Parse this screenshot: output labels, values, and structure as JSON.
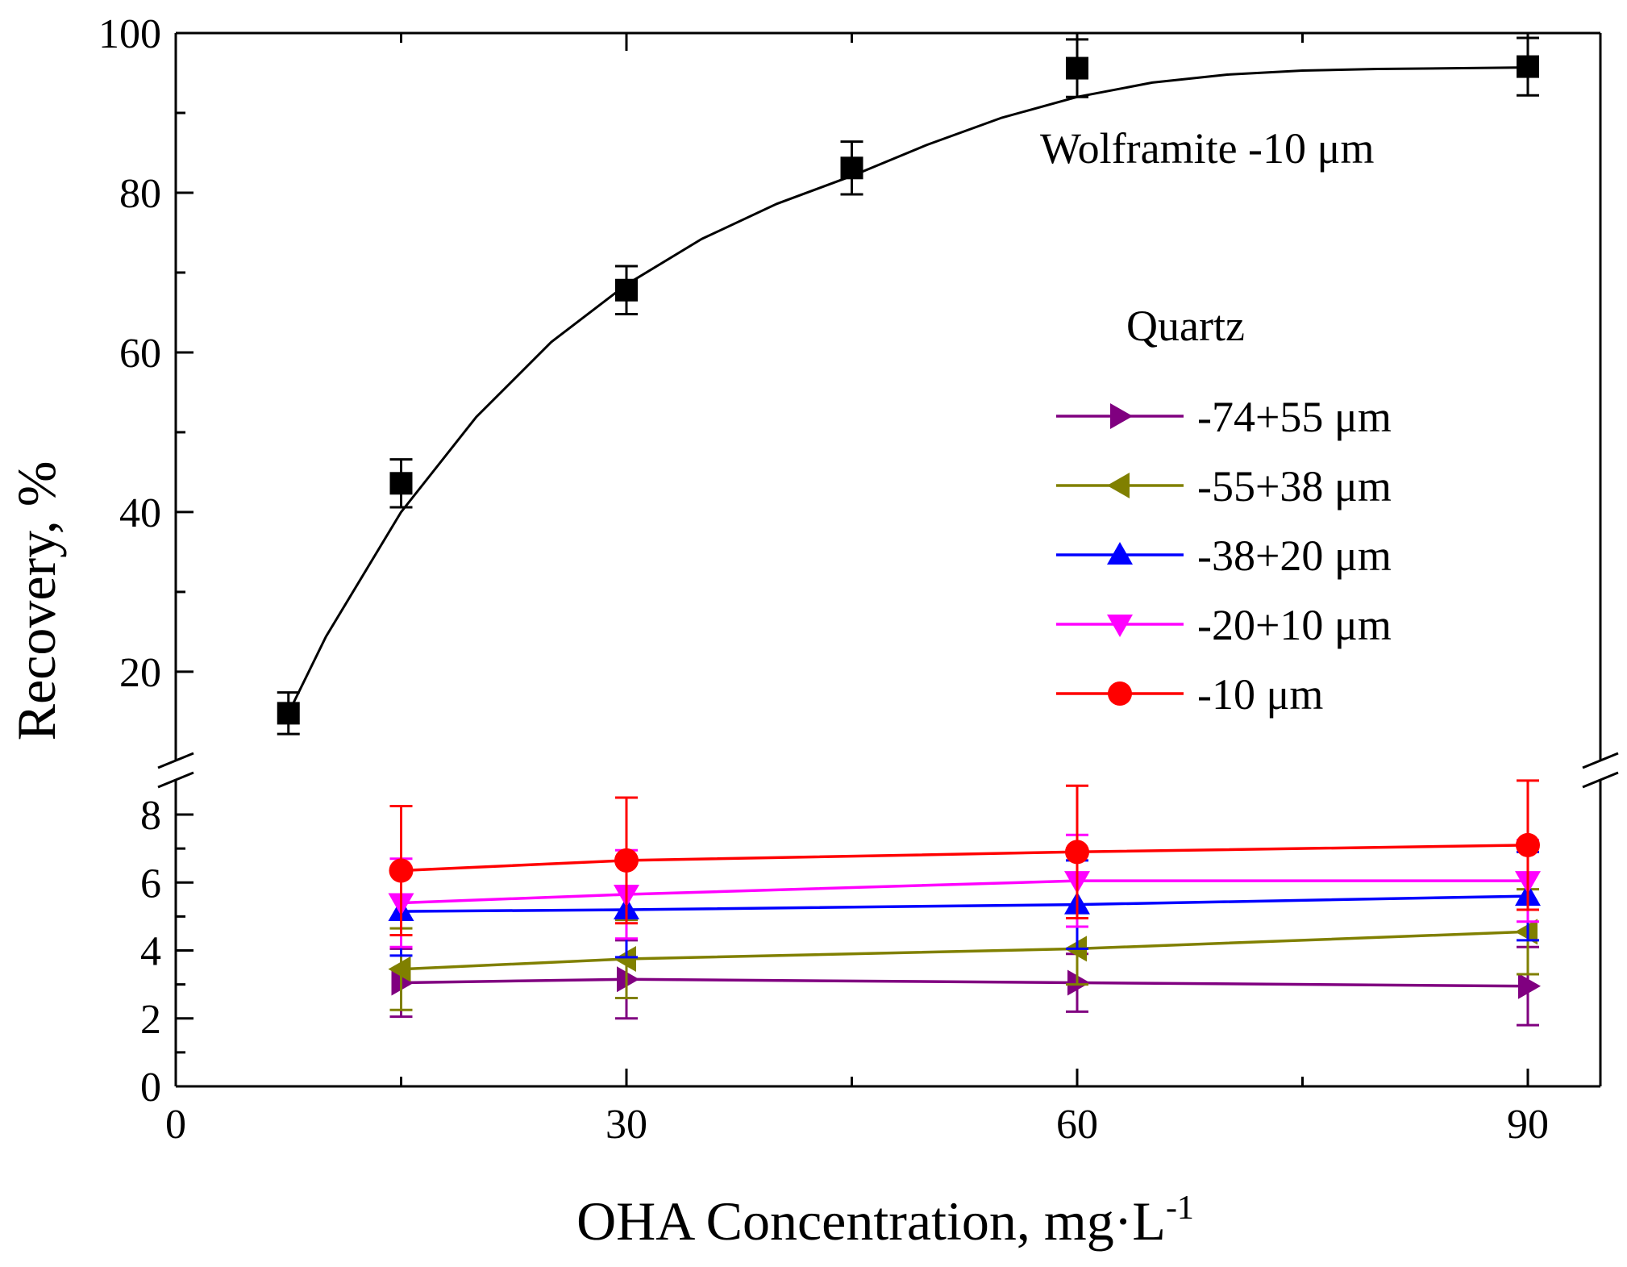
{
  "chart_data": {
    "type": "scatter",
    "title": "",
    "xlabel": "OHA Concentration, mg·L",
    "xlabel_superscript": "-1",
    "ylabel": "Recovery, %",
    "xlim": [
      0,
      95
    ],
    "ylim_upper": [
      11,
      100
    ],
    "ylim_lower": [
      0,
      9
    ],
    "y_axis_break": true,
    "x_ticks": [
      "0",
      "30",
      "60",
      "90"
    ],
    "y_ticks_upper": [
      "20",
      "40",
      "60",
      "80",
      "100"
    ],
    "y_ticks_lower": [
      "0",
      "2",
      "4",
      "6",
      "8"
    ],
    "annotations": {
      "wolframite_label": "Wolframite  -10 μm",
      "quartz_label": "Quartz"
    },
    "legend_position": "right-middle",
    "series": [
      {
        "name": "Wolframite -10 μm",
        "in_legend": false,
        "marker": "square",
        "color": "#000000",
        "x": [
          7.5,
          15,
          30,
          45,
          60,
          90
        ],
        "y": [
          14.8,
          43.6,
          67.8,
          83.1,
          95.6,
          95.8
        ],
        "err": [
          2.6,
          3.0,
          3.0,
          3.3,
          3.6,
          3.6
        ],
        "fit_curve": {
          "kind": "exponential",
          "points": [
            [
              7.5,
              14.8
            ],
            [
              10,
              24.4
            ],
            [
              15,
              40.0
            ],
            [
              20,
              51.9
            ],
            [
              25,
              61.3
            ],
            [
              30,
              68.5
            ],
            [
              35,
              74.2
            ],
            [
              40,
              78.6
            ],
            [
              45,
              82.1
            ],
            [
              50,
              86.0
            ],
            [
              55,
              89.4
            ],
            [
              60,
              92.0
            ],
            [
              65,
              93.8
            ],
            [
              70,
              94.8
            ],
            [
              75,
              95.3
            ],
            [
              80,
              95.5
            ],
            [
              85,
              95.6
            ],
            [
              90,
              95.7
            ]
          ]
        }
      },
      {
        "name": "-74+55 μm",
        "marker": "triangle-right",
        "color": "#800080",
        "x": [
          15,
          30,
          60,
          90
        ],
        "y": [
          3.05,
          3.15,
          3.05,
          2.95
        ],
        "err": [
          1.0,
          1.15,
          0.85,
          1.15
        ]
      },
      {
        "name": "-55+38 μm",
        "marker": "triangle-left",
        "color": "#808000",
        "x": [
          15,
          30,
          60,
          90
        ],
        "y": [
          3.45,
          3.75,
          4.05,
          4.55
        ],
        "err": [
          1.2,
          1.15,
          1.05,
          1.25
        ]
      },
      {
        "name": "-38+20 μm",
        "marker": "triangle-up",
        "color": "#0000ff",
        "x": [
          15,
          30,
          60,
          90
        ],
        "y": [
          5.15,
          5.2,
          5.35,
          5.6
        ],
        "err": [
          1.3,
          1.4,
          1.3,
          1.3
        ]
      },
      {
        "name": "-20+10 μm",
        "marker": "triangle-down",
        "color": "#ff00ff",
        "x": [
          15,
          30,
          60,
          90
        ],
        "y": [
          5.4,
          5.65,
          6.05,
          6.05
        ],
        "err": [
          1.3,
          1.3,
          1.35,
          1.2
        ]
      },
      {
        "name": "-10 μm",
        "marker": "circle",
        "color": "#ff0000",
        "x": [
          15,
          30,
          60,
          90
        ],
        "y": [
          6.35,
          6.65,
          6.9,
          7.1
        ],
        "err": [
          1.9,
          1.85,
          1.95,
          1.9
        ]
      }
    ]
  }
}
